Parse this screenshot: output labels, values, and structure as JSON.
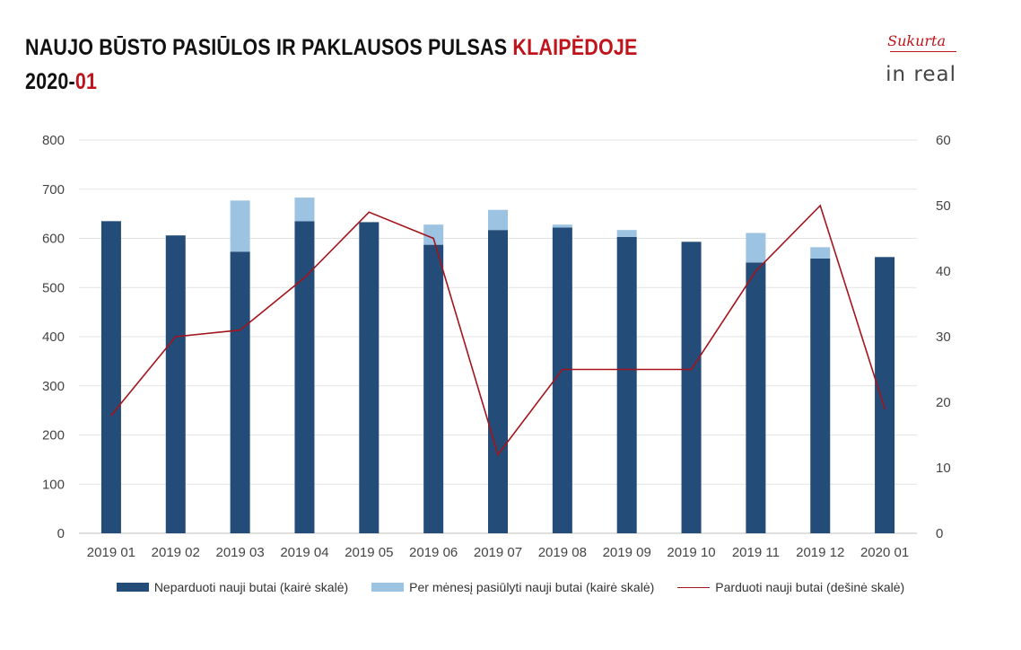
{
  "header": {
    "title_main": "NAUJO BŪSTO PASIŪLOS IR PAKLAUSOS PULSAS ",
    "title_city": "KLAIPĖDOJE",
    "subtitle_year": "2020-",
    "subtitle_month": "01"
  },
  "logo": {
    "sukurta": "Sukurta",
    "brand": "in real"
  },
  "colors": {
    "unsold": "#234c78",
    "offered": "#9dc3e3",
    "sold": "#a3141c",
    "accent": "#c0141c"
  },
  "chart_data": {
    "type": "bar",
    "categories": [
      "2019 01",
      "2019 02",
      "2019 03",
      "2019 04",
      "2019 05",
      "2019 06",
      "2019 07",
      "2019 08",
      "2019 09",
      "2019 10",
      "2019 11",
      "2019 12",
      "2020 01"
    ],
    "series": [
      {
        "name": "Neparduoti nauji butai (kairė skalė)",
        "kind": "bar",
        "axis": "left",
        "values": [
          635,
          606,
          573,
          635,
          633,
          587,
          617,
          622,
          603,
          593,
          551,
          559,
          562
        ]
      },
      {
        "name": "Per mėnesį pasiūlyti nauji butai (kairė skalė)",
        "kind": "bar-stacked",
        "axis": "left",
        "values": [
          0,
          0,
          104,
          48,
          0,
          41,
          41,
          6,
          14,
          0,
          60,
          23,
          0
        ]
      },
      {
        "name": "Parduoti nauji butai (dešinė skalė)",
        "kind": "line",
        "axis": "right",
        "values": [
          18,
          30,
          31,
          39,
          49,
          45,
          12,
          25,
          25,
          25,
          40,
          50,
          19
        ]
      }
    ],
    "left_axis": {
      "min": 0,
      "max": 800,
      "ticks": [
        "0",
        "100",
        "200",
        "300",
        "400",
        "500",
        "600",
        "700",
        "800"
      ]
    },
    "right_axis": {
      "min": 0,
      "max": 60,
      "ticks": [
        "0",
        "10",
        "20",
        "30",
        "40",
        "50",
        "60"
      ]
    },
    "grid": true,
    "legend_position": "bottom"
  }
}
